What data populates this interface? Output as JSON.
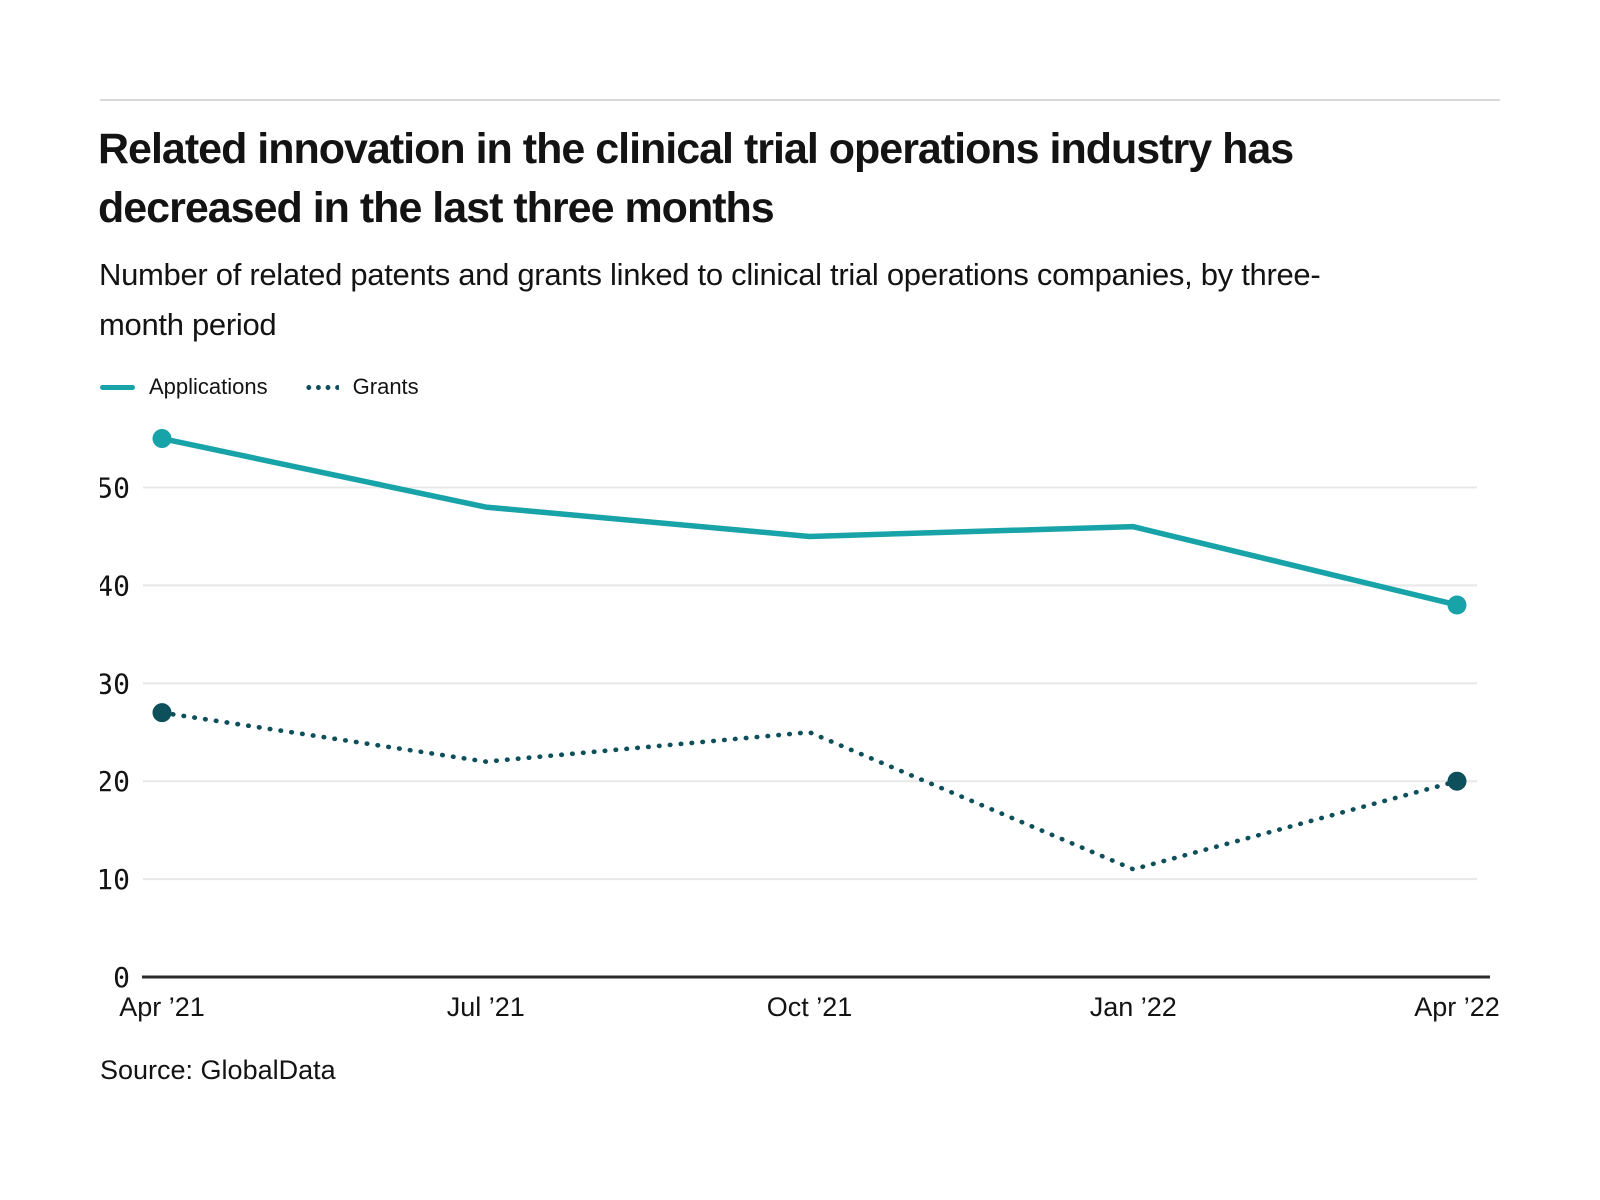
{
  "chart_data": {
    "type": "line",
    "title": "Related innovation in the clinical trial operations industry has decreased in the last three months",
    "subtitle": "Number of related patents and grants linked to clinical trial operations companies, by three-month period",
    "categories": [
      "Apr ’21",
      "Jul ’21",
      "Oct ’21",
      "Jan ’22",
      "Apr ’22"
    ],
    "series": [
      {
        "name": "Applications",
        "values": [
          55,
          48,
          45,
          46,
          38
        ],
        "color": "#17a3a8",
        "style": "solid",
        "markers": "ends"
      },
      {
        "name": "Grants",
        "values": [
          27,
          22,
          25,
          11,
          20
        ],
        "color": "#0d4f5a",
        "style": "dotted",
        "markers": "ends"
      }
    ],
    "ylim": [
      0,
      57
    ],
    "yticks": [
      0,
      10,
      20,
      30,
      40,
      50
    ],
    "grid": "horizontal",
    "grid_color": "#e8e8e8",
    "axis_color": "#2b2b2b",
    "legend_position": "top-left"
  },
  "source": {
    "label": "Source: GlobalData"
  }
}
